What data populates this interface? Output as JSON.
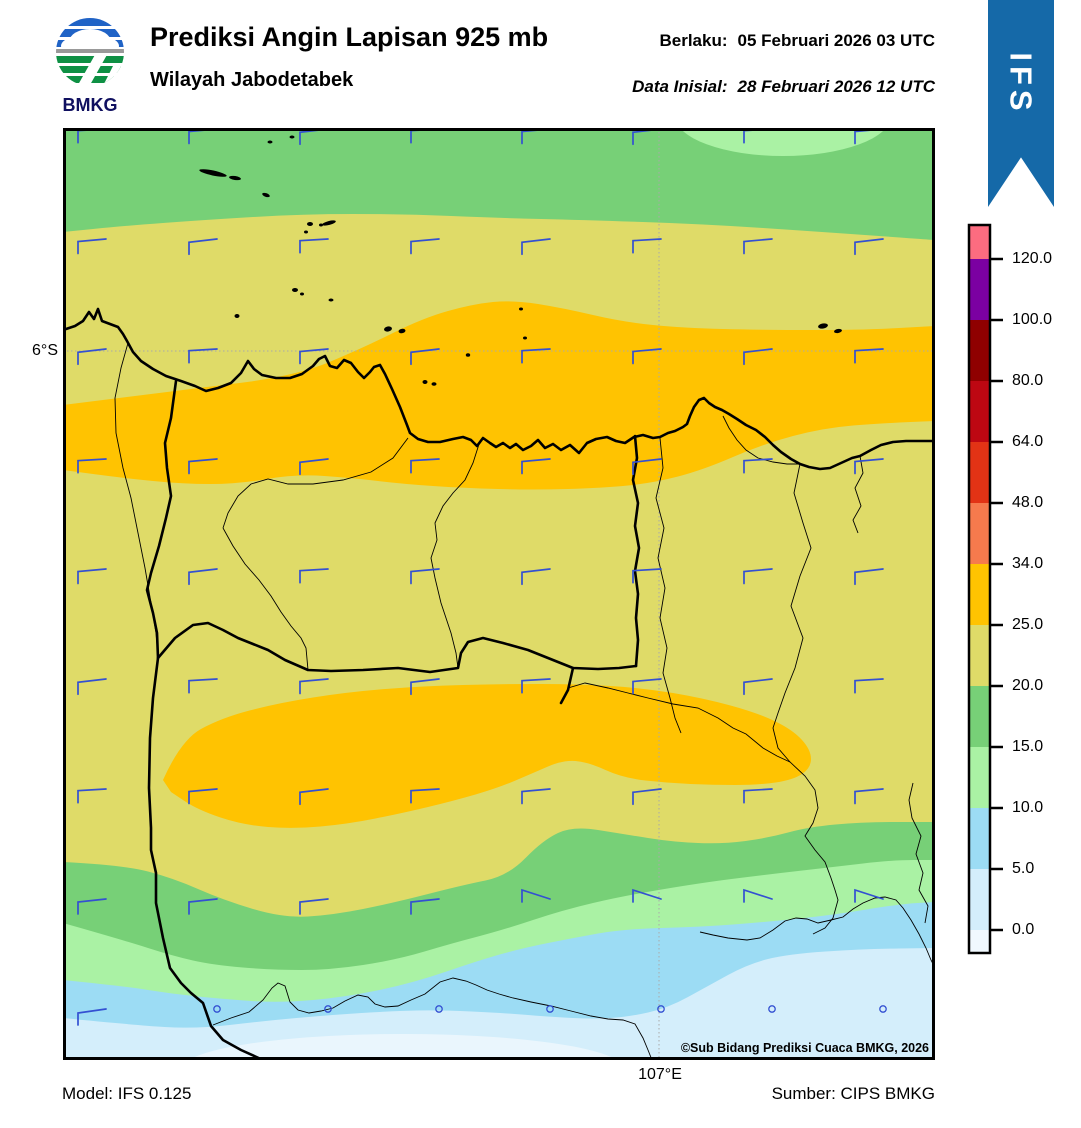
{
  "header": {
    "logo_text": "BMKG",
    "title": "Prediksi Angin Lapisan 925 mb",
    "subtitle": "Wilayah Jabodetabek",
    "valid_label": "Berlaku:",
    "valid_value": "05 Februari 2026 03 UTC",
    "initial_label": "Data Inisial:",
    "initial_value": "28 Februari 2026 12 UTC"
  },
  "ribbon": {
    "label": "IFS",
    "color": "#1569A8"
  },
  "map_overlay": {
    "lat_tick": "6°S",
    "lon_tick": "107°E",
    "credit": "©Sub Bidang Prediksi Cuaca BMKG, 2026"
  },
  "footer": {
    "model": "Model: IFS 0.125",
    "source": "Sumber: CIPS BMKG"
  },
  "colorbar": {
    "tick_labels": [
      "120.0",
      "100.0",
      "80.0",
      "64.0",
      "48.0",
      "34.0",
      "25.0",
      "20.0",
      "15.0",
      "10.0",
      "5.0",
      "0.0"
    ],
    "segment_colors_top_to_bottom": [
      "#FC6C80",
      "#7B00A2",
      "#8F0000",
      "#BD0712",
      "#E23315",
      "#F67A4D",
      "#FFC301",
      "#DFDB68",
      "#77D077",
      "#AAF2A4",
      "#9CDCF4",
      "#D4EEFB",
      "#F0F8FE"
    ]
  },
  "wind": {
    "barb_color": "#3350D2",
    "calm_symbol": "circle"
  },
  "map_palette": {
    "green": "#77D077",
    "khaki": "#DFDB68",
    "gold": "#FFC301",
    "light_green": "#AAF2A4",
    "light_blue": "#9CDCF4",
    "pale_blue": "#D4EEFB",
    "lightest_blue": "#EAF6FD",
    "line_black": "#000000",
    "gridline_gray": "#aaaaaa"
  }
}
